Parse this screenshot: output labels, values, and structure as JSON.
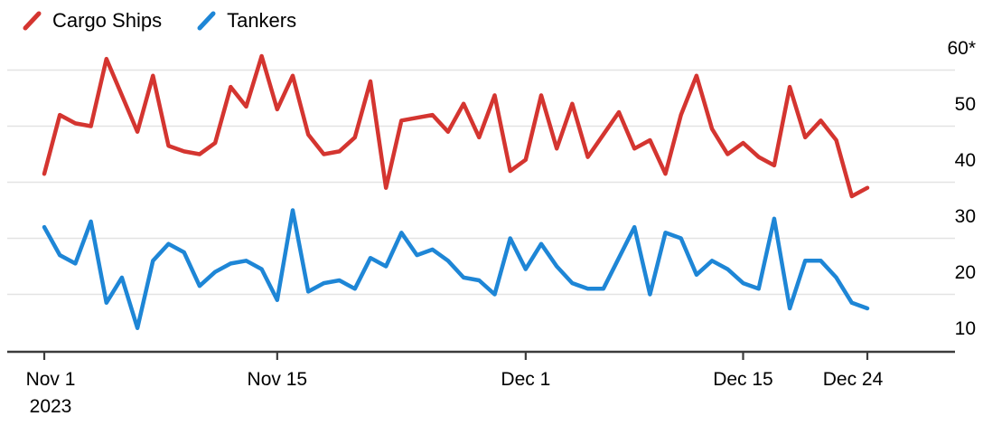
{
  "chart_data": {
    "type": "line",
    "title": "",
    "xlabel": "",
    "ylabel": "",
    "categories": [
      "Nov 1",
      "Nov 2",
      "Nov 3",
      "Nov 4",
      "Nov 5",
      "Nov 6",
      "Nov 7",
      "Nov 8",
      "Nov 9",
      "Nov 10",
      "Nov 11",
      "Nov 12",
      "Nov 13",
      "Nov 14",
      "Nov 15",
      "Nov 16",
      "Nov 17",
      "Nov 18",
      "Nov 19",
      "Nov 20",
      "Nov 21",
      "Nov 22",
      "Nov 23",
      "Nov 24",
      "Nov 25",
      "Nov 26",
      "Nov 27",
      "Nov 28",
      "Nov 29",
      "Nov 30",
      "Dec 1",
      "Dec 2",
      "Dec 3",
      "Dec 4",
      "Dec 5",
      "Dec 6",
      "Dec 7",
      "Dec 8",
      "Dec 9",
      "Dec 10",
      "Dec 11",
      "Dec 12",
      "Dec 13",
      "Dec 14",
      "Dec 15",
      "Dec 16",
      "Dec 17",
      "Dec 18",
      "Dec 19",
      "Dec 20",
      "Dec 21",
      "Dec 22",
      "Dec 23",
      "Dec 24"
    ],
    "series": [
      {
        "name": "Cargo Ships",
        "color": "#d43530",
        "values": [
          41.5,
          52,
          50.5,
          50,
          62,
          55.5,
          49,
          59,
          46.5,
          45.5,
          45,
          47,
          57,
          53.5,
          62.5,
          53,
          59,
          48.5,
          45,
          45.5,
          48,
          58,
          39,
          51,
          51.5,
          52,
          49,
          54,
          48,
          55.5,
          42,
          44,
          55.5,
          46,
          54,
          44.5,
          48.5,
          52.5,
          46,
          47.5,
          41.5,
          52,
          59,
          49.5,
          45,
          47,
          44.5,
          43,
          57,
          48,
          51,
          47.5,
          37.5,
          39
        ]
      },
      {
        "name": "Tankers",
        "color": "#1e86d6",
        "values": [
          32,
          27,
          25.5,
          33,
          18.5,
          23,
          14,
          26,
          29,
          27.5,
          21.5,
          24,
          25.5,
          26,
          24.5,
          19,
          35,
          20.5,
          22,
          22.5,
          21,
          26.5,
          25,
          31,
          27,
          28,
          26,
          23,
          22.5,
          20,
          30,
          24.5,
          29,
          25,
          22,
          21,
          21,
          26.5,
          32,
          20,
          31,
          30,
          23.5,
          26,
          24.5,
          22,
          21,
          33.5,
          17.5,
          26,
          26,
          23,
          18.5,
          17.5
        ]
      }
    ],
    "y_axis": {
      "side": "right",
      "range": [
        10,
        63
      ],
      "ticks": [
        {
          "value": 10,
          "label": "10"
        },
        {
          "value": 20,
          "label": "20"
        },
        {
          "value": 30,
          "label": "30"
        },
        {
          "value": 40,
          "label": "40"
        },
        {
          "value": 50,
          "label": "50"
        },
        {
          "value": 60,
          "label": "60*"
        }
      ]
    },
    "x_axis": {
      "start_label_year": "2023",
      "ticks": [
        {
          "label": "Nov 1",
          "sublabel": "2023",
          "day_index": 0
        },
        {
          "label": "Nov 15",
          "sublabel": "",
          "day_index": 15
        },
        {
          "label": "Dec 1",
          "sublabel": "",
          "day_index": 31
        },
        {
          "label": "Dec 15",
          "sublabel": "",
          "day_index": 45
        },
        {
          "label": "Dec 24",
          "sublabel": "",
          "day_index": 53
        }
      ]
    },
    "grid": "horizontal",
    "legend_position": "top-left",
    "colors": {
      "grid_line": "#e3e3e3",
      "axis_line": "#3c3c3c",
      "tick_text": "#000000",
      "background": "#ffffff"
    }
  }
}
